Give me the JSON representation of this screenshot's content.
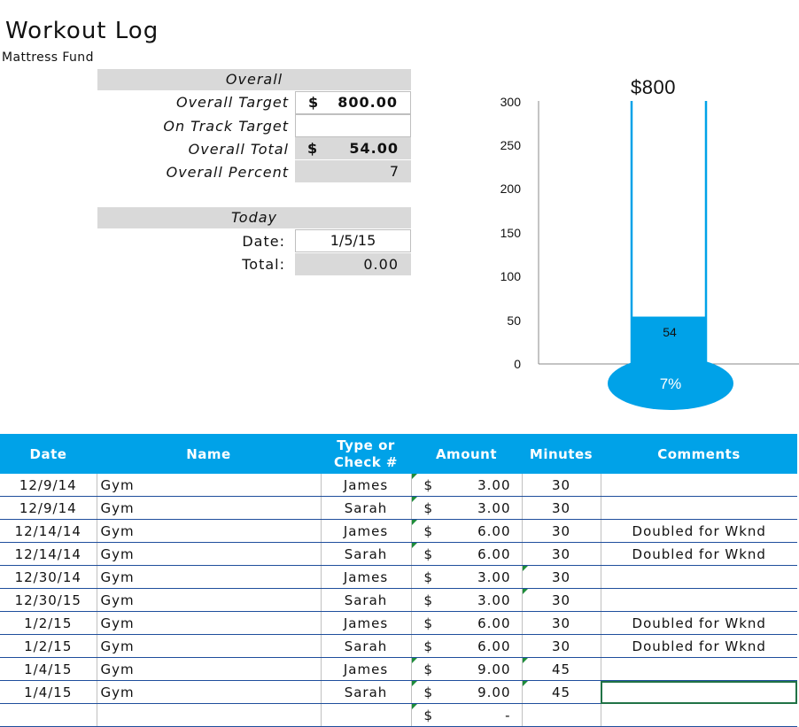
{
  "title": "Workout Log",
  "subtitle": "Mattress Fund",
  "overall": {
    "header": "Overall",
    "target_label": "Overall Target",
    "target_currency": "$",
    "target_value": "800.00",
    "on_track_label": "On Track Target",
    "on_track_value": "",
    "total_label": "Overall Total",
    "total_currency": "$",
    "total_value": "54.00",
    "percent_label": "Overall Percent",
    "percent_value": "7"
  },
  "today": {
    "header": "Today",
    "date_label": "Date:",
    "date_value": "1/5/15",
    "total_label": "Total:",
    "total_value": "0.00"
  },
  "chart_data": {
    "type": "bar",
    "title": "$800",
    "categories": [
      ""
    ],
    "values": [
      54
    ],
    "ylim": [
      0,
      300
    ],
    "yticks": [
      "0",
      "50",
      "100",
      "150",
      "200",
      "250",
      "300"
    ],
    "data_label": "54",
    "bulb_label": "7%",
    "colors": {
      "tube": "#00a2e8",
      "bulb": "#00a2e8",
      "axis": "#888888"
    }
  },
  "table": {
    "headers": [
      "Date",
      "Name",
      "Type or Check #",
      "Amount",
      "Minutes",
      "Comments"
    ],
    "rows": [
      {
        "date": "12/9/14",
        "name": "Gym",
        "type": "James",
        "cur": "$",
        "amount": "3.00",
        "minutes": "30",
        "comments": ""
      },
      {
        "date": "12/9/14",
        "name": "Gym",
        "type": "Sarah",
        "cur": "$",
        "amount": "3.00",
        "minutes": "30",
        "comments": ""
      },
      {
        "date": "12/14/14",
        "name": "Gym",
        "type": "James",
        "cur": "$",
        "amount": "6.00",
        "minutes": "30",
        "comments": "Doubled for Wknd"
      },
      {
        "date": "12/14/14",
        "name": "Gym",
        "type": "Sarah",
        "cur": "$",
        "amount": "6.00",
        "minutes": "30",
        "comments": "Doubled for Wknd"
      },
      {
        "date": "12/30/14",
        "name": "Gym",
        "type": "James",
        "cur": "$",
        "amount": "3.00",
        "minutes": "30",
        "comments": ""
      },
      {
        "date": "12/30/15",
        "name": "Gym",
        "type": "Sarah",
        "cur": "$",
        "amount": "3.00",
        "minutes": "30",
        "comments": ""
      },
      {
        "date": "1/2/15",
        "name": "Gym",
        "type": "James",
        "cur": "$",
        "amount": "6.00",
        "minutes": "30",
        "comments": "Doubled for Wknd"
      },
      {
        "date": "1/2/15",
        "name": "Gym",
        "type": "Sarah",
        "cur": "$",
        "amount": "6.00",
        "minutes": "30",
        "comments": "Doubled for Wknd"
      },
      {
        "date": "1/4/15",
        "name": "Gym",
        "type": "James",
        "cur": "$",
        "amount": "9.00",
        "minutes": "45",
        "comments": ""
      },
      {
        "date": "1/4/15",
        "name": "Gym",
        "type": "Sarah",
        "cur": "$",
        "amount": "9.00",
        "minutes": "45",
        "comments": ""
      },
      {
        "date": "",
        "name": "",
        "type": "",
        "cur": "$",
        "amount": "-",
        "minutes": "",
        "comments": ""
      }
    ]
  }
}
